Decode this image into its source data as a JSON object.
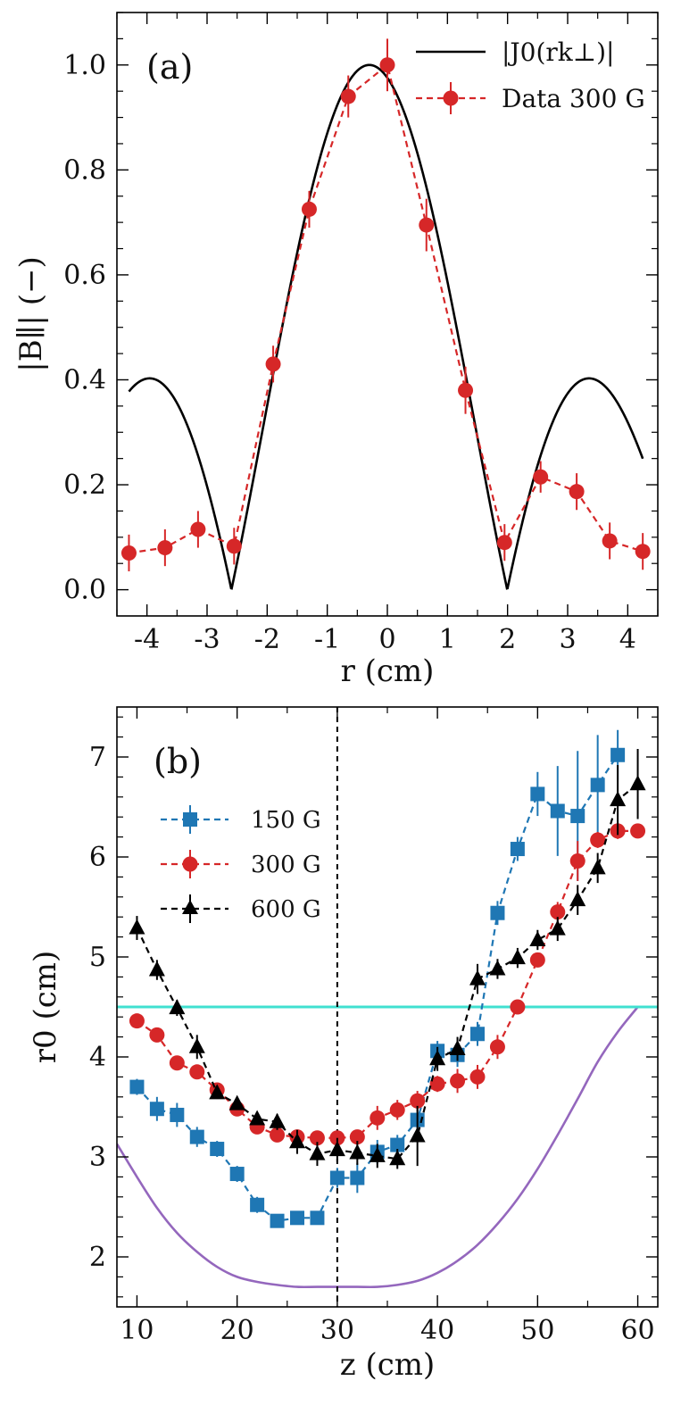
{
  "chart_data": [
    {
      "type": "line",
      "panel_label": "(a)",
      "xlabel": "r (cm)",
      "ylabel": "|B∥| (−)",
      "xlim": [
        -4.5,
        4.5
      ],
      "ylim": [
        -0.05,
        1.1
      ],
      "xticks": [
        -4,
        -3,
        -2,
        -1,
        0,
        1,
        2,
        3,
        4
      ],
      "xtick_labels": [
        "-4",
        "-3",
        "-2",
        "-1",
        "0",
        "1",
        "2",
        "3",
        "4"
      ],
      "yticks": [
        0.0,
        0.2,
        0.4,
        0.6,
        0.8,
        1.0
      ],
      "ytick_labels": [
        "0.0",
        "0.2",
        "0.4",
        "0.6",
        "0.8",
        "1.0"
      ],
      "legend_position": "top-right",
      "series": [
        {
          "name": "|J0(rk⊥)|",
          "kind": "bessel_curve",
          "color": "#000000",
          "center": -0.3,
          "k_perp": 1.048,
          "x_range": [
            -4.3,
            4.25
          ]
        },
        {
          "name": "Data 300 G",
          "kind": "points",
          "color": "#d62728",
          "x": [
            -4.3,
            -3.7,
            -3.15,
            -2.55,
            -1.9,
            -1.3,
            -0.65,
            0.0,
            0.65,
            1.3,
            1.95,
            2.55,
            3.15,
            3.7,
            4.25
          ],
          "y": [
            0.07,
            0.08,
            0.115,
            0.083,
            0.43,
            0.725,
            0.94,
            1.0,
            0.695,
            0.38,
            0.09,
            0.215,
            0.187,
            0.093,
            0.073
          ],
          "yerr": [
            0.035,
            0.035,
            0.035,
            0.035,
            0.035,
            0.035,
            0.04,
            0.05,
            0.05,
            0.045,
            0.035,
            0.03,
            0.035,
            0.035,
            0.035
          ],
          "xerr": 0.12
        }
      ]
    },
    {
      "type": "line",
      "panel_label": "(b)",
      "xlabel": "z (cm)",
      "ylabel": "r0 (cm)",
      "xlim": [
        8,
        62
      ],
      "ylim": [
        1.5,
        7.5
      ],
      "xticks": [
        10,
        20,
        30,
        40,
        50,
        60
      ],
      "xtick_labels": [
        "10",
        "20",
        "30",
        "40",
        "50",
        "60"
      ],
      "yticks": [
        2,
        3,
        4,
        5,
        6,
        7
      ],
      "ytick_labels": [
        "2",
        "3",
        "4",
        "5",
        "6",
        "7"
      ],
      "legend_position": "upper-left",
      "vline_x": 30,
      "hline": {
        "y": 4.5,
        "color": "#40e0d0"
      },
      "purple_curve": {
        "color": "#9467bd",
        "x": [
          8,
          10,
          12,
          14,
          16,
          18,
          20,
          22,
          24,
          26,
          28,
          30,
          32,
          34,
          36,
          38,
          40,
          42,
          44,
          46,
          48,
          50,
          52,
          54,
          56,
          58,
          60
        ],
        "y": [
          3.13,
          2.8,
          2.49,
          2.24,
          2.05,
          1.9,
          1.8,
          1.75,
          1.72,
          1.7,
          1.7,
          1.7,
          1.7,
          1.7,
          1.72,
          1.76,
          1.84,
          1.96,
          2.12,
          2.33,
          2.58,
          2.88,
          3.22,
          3.58,
          3.95,
          4.25,
          4.5
        ]
      },
      "series": [
        {
          "name": "150 G",
          "marker": "square",
          "color": "#1f77b4",
          "x": [
            10,
            12,
            14,
            16,
            18,
            20,
            22,
            24,
            26,
            28,
            30,
            32,
            34,
            36,
            38,
            40,
            42,
            44,
            46,
            48,
            50,
            52,
            54,
            56,
            58
          ],
          "y": [
            3.7,
            3.48,
            3.42,
            3.2,
            3.08,
            2.83,
            2.52,
            2.36,
            2.39,
            2.39,
            2.79,
            2.79,
            3.05,
            3.12,
            3.37,
            4.06,
            4.02,
            4.23,
            5.44,
            6.08,
            6.63,
            6.46,
            6.41,
            6.72,
            7.02
          ],
          "yerr": [
            0.08,
            0.12,
            0.12,
            0.1,
            0.08,
            0.08,
            0.08,
            0.06,
            0.06,
            0.06,
            0.1,
            0.15,
            0.12,
            0.1,
            0.12,
            0.1,
            0.12,
            0.12,
            0.12,
            0.12,
            0.22,
            0.45,
            0.65,
            0.5,
            0.25
          ]
        },
        {
          "name": "300 G",
          "marker": "circle",
          "color": "#d62728",
          "x": [
            10,
            12,
            14,
            16,
            18,
            20,
            22,
            24,
            26,
            28,
            30,
            32,
            34,
            36,
            38,
            40,
            42,
            44,
            46,
            48,
            50,
            52,
            54,
            56,
            58,
            60
          ],
          "y": [
            4.36,
            4.22,
            3.94,
            3.85,
            3.67,
            3.48,
            3.3,
            3.22,
            3.2,
            3.19,
            3.19,
            3.2,
            3.39,
            3.47,
            3.56,
            3.73,
            3.76,
            3.8,
            4.1,
            4.5,
            4.97,
            5.45,
            5.96,
            6.17,
            6.26,
            6.26
          ],
          "yerr": [
            0.05,
            0.05,
            0.05,
            0.05,
            0.05,
            0.05,
            0.05,
            0.05,
            0.05,
            0.05,
            0.05,
            0.05,
            0.12,
            0.1,
            0.1,
            0.08,
            0.12,
            0.12,
            0.12,
            0.05,
            0.05,
            0.1,
            0.2,
            0.08,
            0.08,
            0.05
          ]
        },
        {
          "name": "600 G",
          "marker": "triangle",
          "color": "#000000",
          "x": [
            10,
            12,
            14,
            16,
            18,
            20,
            22,
            24,
            26,
            28,
            30,
            32,
            34,
            36,
            38,
            40,
            42,
            44,
            46,
            48,
            50,
            52,
            54,
            56,
            58,
            60
          ],
          "y": [
            5.29,
            4.87,
            4.49,
            4.1,
            3.64,
            3.53,
            3.38,
            3.35,
            3.15,
            3.03,
            3.07,
            3.04,
            3.01,
            2.98,
            3.21,
            3.98,
            4.08,
            4.78,
            4.88,
            4.99,
            5.17,
            5.28,
            5.57,
            5.89,
            6.57,
            6.73
          ],
          "yerr": [
            0.12,
            0.1,
            0.08,
            0.12,
            0.06,
            0.06,
            0.06,
            0.08,
            0.12,
            0.12,
            0.12,
            0.12,
            0.12,
            0.1,
            0.3,
            0.12,
            0.12,
            0.15,
            0.1,
            0.1,
            0.1,
            0.12,
            0.15,
            0.15,
            0.35,
            0.35
          ]
        }
      ]
    }
  ]
}
